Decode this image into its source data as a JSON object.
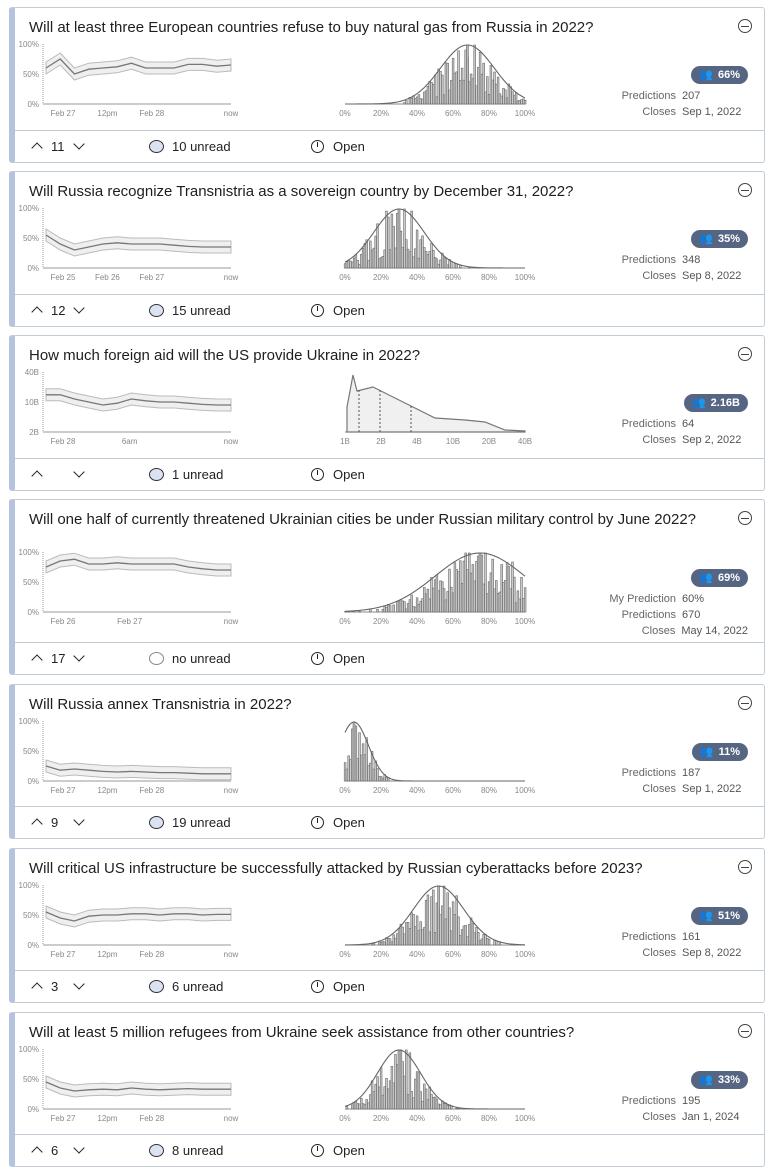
{
  "questions": [
    {
      "title": "Will at least three European countries refuse to buy natural gas from Russia in 2022?",
      "y_ticks": [
        "100%",
        "50%",
        "0%"
      ],
      "x_ticks": [
        "Feb 27",
        "12pm",
        "Feb 28",
        "now"
      ],
      "history": [
        60,
        75,
        50,
        58,
        60,
        62,
        68,
        60,
        60,
        60,
        66,
        66,
        63,
        65
      ],
      "hist_ticks": [
        "0%",
        "20%",
        "40%",
        "60%",
        "80%",
        "100%"
      ],
      "mode": 0.68,
      "spread": 0.15,
      "community": "66%",
      "my_prediction": null,
      "predictions": "207",
      "closes": "Sep 1, 2022",
      "votes": "11",
      "comments": "10 unread",
      "status": "Open"
    },
    {
      "title": "Will Russia recognize Transnistria as a sovereign country by December 31, 2022?",
      "y_ticks": [
        "100%",
        "50%",
        "0%"
      ],
      "x_ticks": [
        "Feb 25",
        "Feb 26",
        "Feb 27",
        "now"
      ],
      "history": [
        55,
        40,
        30,
        35,
        40,
        42,
        40,
        40,
        40,
        38,
        36,
        35,
        35,
        35
      ],
      "hist_ticks": [
        "0%",
        "20%",
        "40%",
        "60%",
        "80%",
        "100%"
      ],
      "mode": 0.3,
      "spread": 0.14,
      "community": "35%",
      "my_prediction": null,
      "predictions": "348",
      "closes": "Sep 8, 2022",
      "votes": "12",
      "comments": "15 unread",
      "status": "Open"
    },
    {
      "title": "How much foreign aid will the US provide Ukraine in 2022?",
      "y_ticks": [
        "40B",
        "10B",
        "2B"
      ],
      "x_ticks": [
        "Feb 28",
        "6am",
        "now"
      ],
      "history": [
        62,
        62,
        55,
        50,
        45,
        48,
        55,
        52,
        50,
        50,
        48,
        46,
        45,
        45
      ],
      "hist_ticks": [
        "1B",
        "2B",
        "4B",
        "10B",
        "20B",
        "40B"
      ],
      "continuous": true,
      "community": "2.16B",
      "my_prediction": null,
      "predictions": "64",
      "closes": "Sep 2, 2022",
      "votes": "",
      "comments": "1 unread",
      "status": "Open"
    },
    {
      "title": "Will one half of currently threatened Ukrainian cities be under Russian military control by June 2022?",
      "y_ticks": [
        "100%",
        "50%",
        "0%"
      ],
      "x_ticks": [
        "Feb 26",
        "Feb 27",
        "now"
      ],
      "history": [
        75,
        85,
        88,
        80,
        80,
        82,
        80,
        80,
        80,
        80,
        75,
        72,
        70,
        70
      ],
      "hist_ticks": [
        "0%",
        "20%",
        "40%",
        "60%",
        "80%",
        "100%"
      ],
      "mode": 0.75,
      "spread": 0.25,
      "community": "69%",
      "my_prediction_label": "My Prediction",
      "my_prediction": "60%",
      "predictions": "670",
      "closes": "May 14, 2022",
      "votes": "17",
      "comments": "no unread",
      "status": "Open"
    },
    {
      "title": "Will Russia annex Transnistria in 2022?",
      "y_ticks": [
        "100%",
        "50%",
        "0%"
      ],
      "x_ticks": [
        "Feb 27",
        "12pm",
        "Feb 28",
        "now"
      ],
      "history": [
        25,
        18,
        20,
        18,
        16,
        15,
        16,
        15,
        14,
        14,
        13,
        12,
        12,
        12
      ],
      "hist_ticks": [
        "0%",
        "20%",
        "40%",
        "60%",
        "80%",
        "100%"
      ],
      "mode": 0.05,
      "spread": 0.08,
      "community": "11%",
      "my_prediction": null,
      "predictions": "187",
      "closes": "Sep 1, 2022",
      "votes": "9",
      "comments": "19 unread",
      "status": "Open"
    },
    {
      "title": "Will critical US infrastructure be successfully attacked by Russian cyberattacks before 2023?",
      "y_ticks": [
        "100%",
        "50%",
        "0%"
      ],
      "x_ticks": [
        "Feb 27",
        "12pm",
        "Feb 28",
        "now"
      ],
      "history": [
        55,
        45,
        40,
        48,
        50,
        50,
        52,
        52,
        50,
        52,
        52,
        50,
        51,
        51
      ],
      "hist_ticks": [
        "0%",
        "20%",
        "40%",
        "60%",
        "80%",
        "100%"
      ],
      "mode": 0.52,
      "spread": 0.14,
      "community": "51%",
      "my_prediction": null,
      "predictions": "161",
      "closes": "Sep 8, 2022",
      "votes": "3",
      "comments": "6 unread",
      "status": "Open"
    },
    {
      "title": "Will at least 5 million refugees from Ukraine seek assistance from other countries?",
      "y_ticks": [
        "100%",
        "50%",
        "0%"
      ],
      "x_ticks": [
        "Feb 27",
        "12pm",
        "Feb 28",
        "now"
      ],
      "history": [
        45,
        35,
        30,
        32,
        33,
        32,
        35,
        33,
        32,
        33,
        34,
        33,
        33,
        33
      ],
      "hist_ticks": [
        "0%",
        "20%",
        "40%",
        "60%",
        "80%",
        "100%"
      ],
      "mode": 0.3,
      "spread": 0.12,
      "community": "33%",
      "my_prediction": null,
      "predictions": "195",
      "closes": "Jan 1, 2024",
      "votes": "6",
      "comments": "8 unread",
      "status": "Open"
    }
  ],
  "labels": {
    "predictions": "Predictions",
    "closes": "Closes"
  },
  "colors": {
    "accent": "#566582",
    "card_border": "#b5c3de"
  }
}
